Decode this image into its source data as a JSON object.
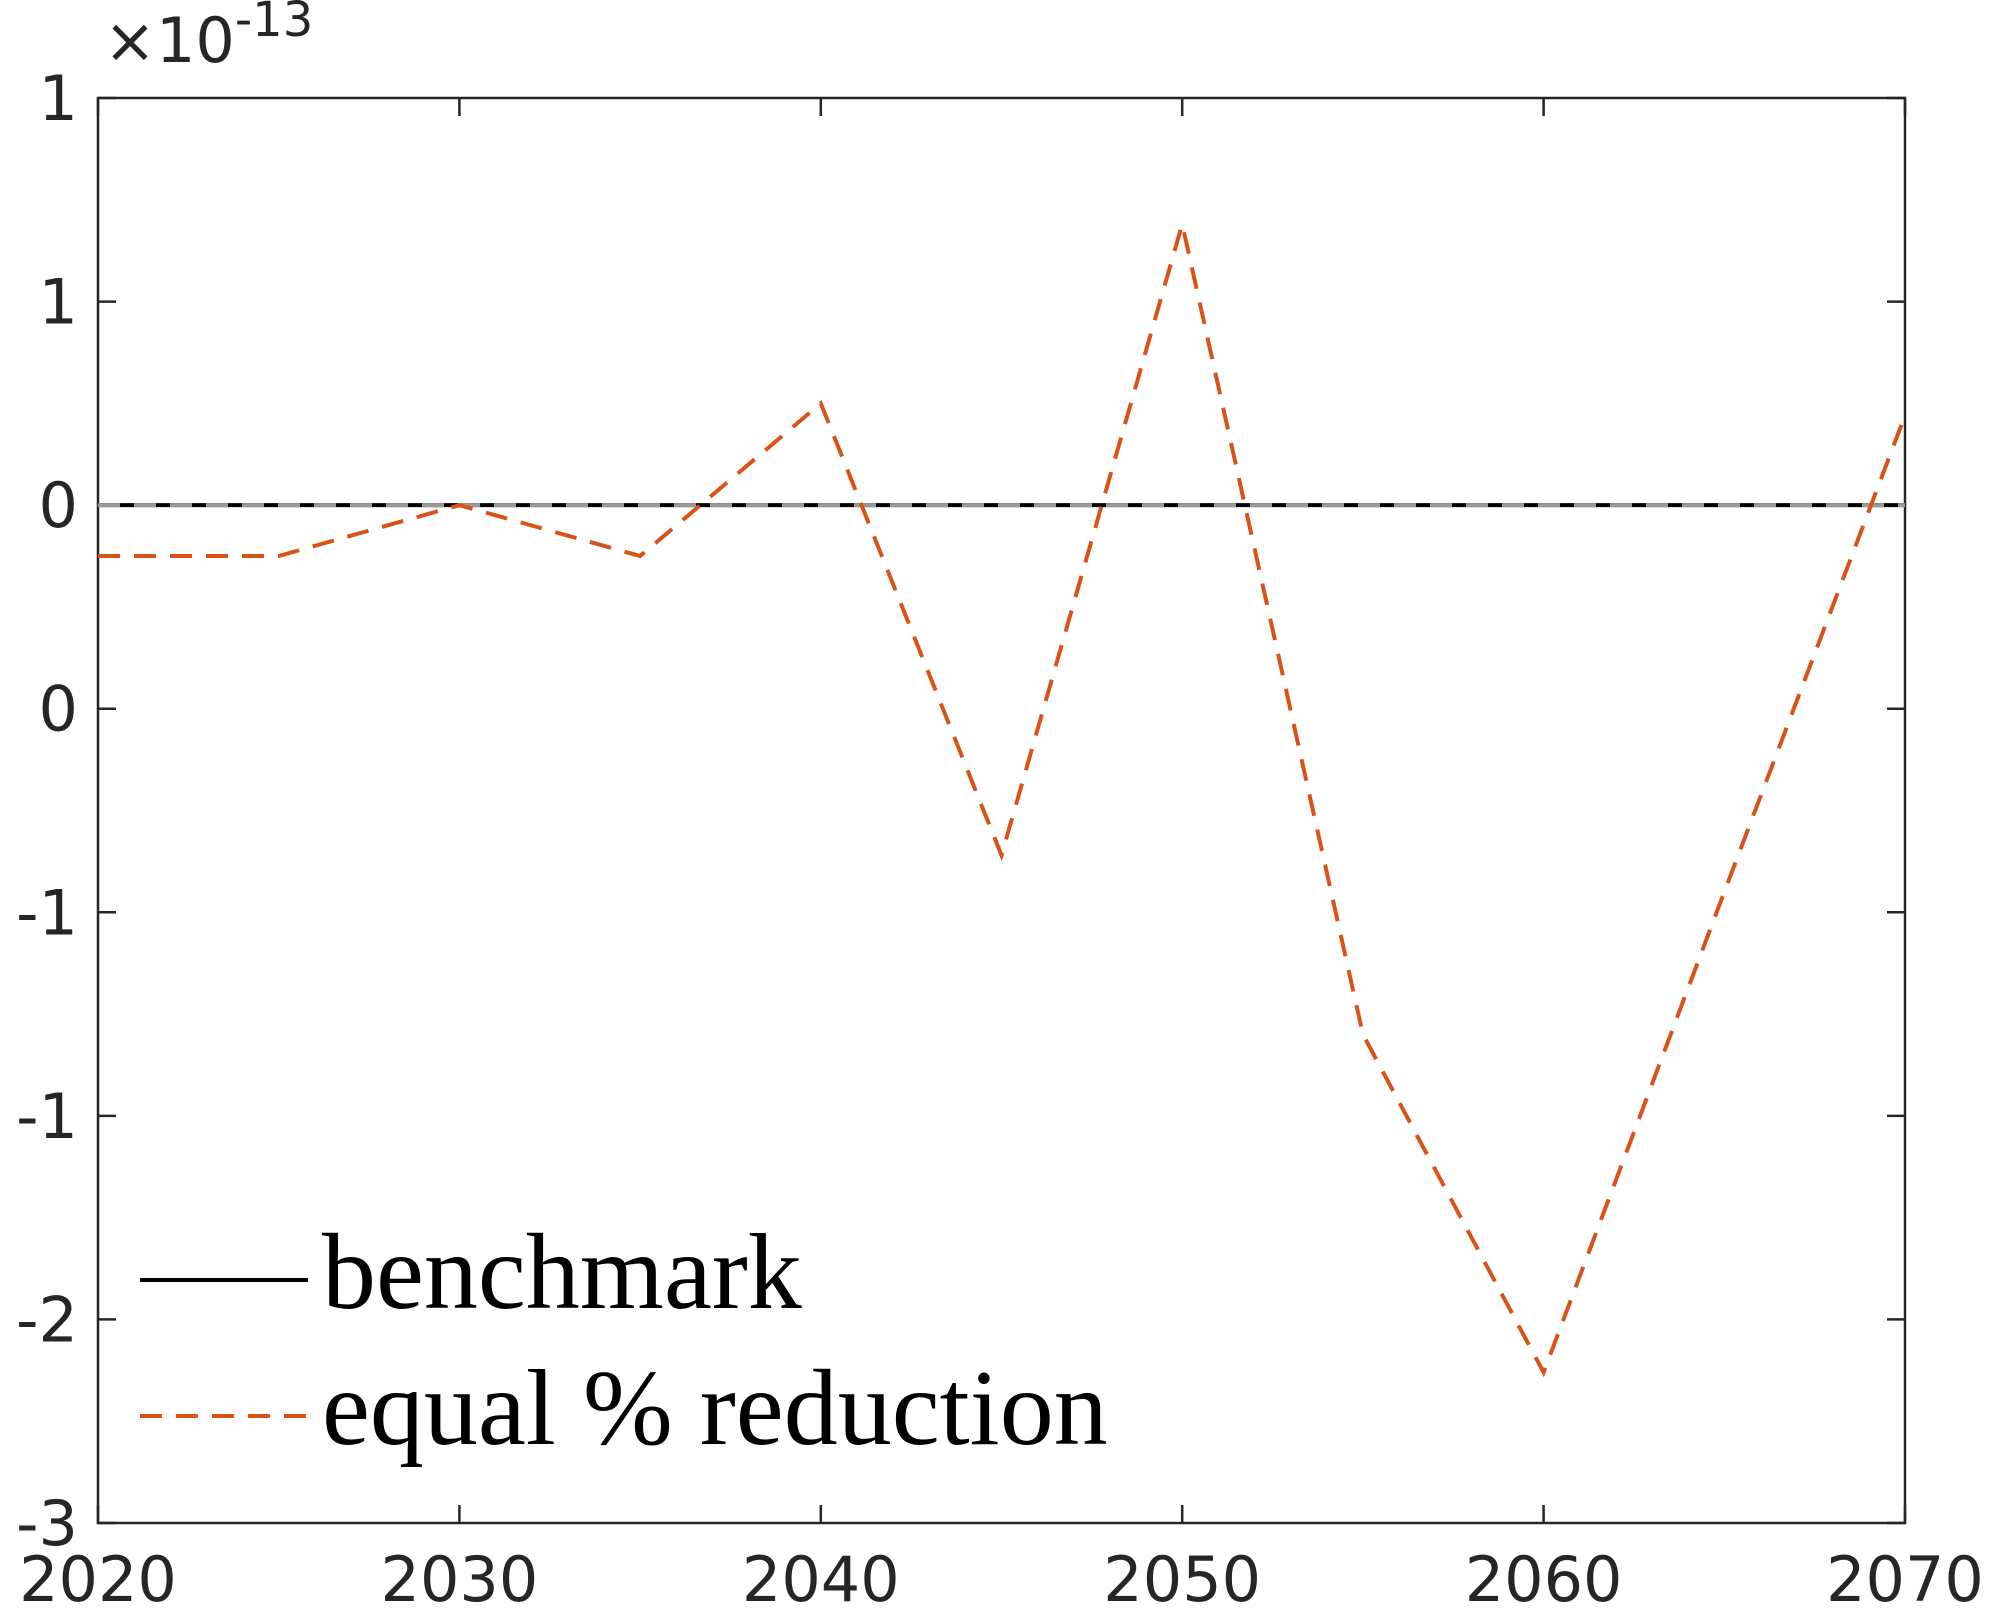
{
  "chart_data": {
    "type": "line",
    "y_multiplier": {
      "base": "×10",
      "exponent": "-13"
    },
    "x": [
      2020,
      2025,
      2030,
      2035,
      2040,
      2045,
      2050,
      2055,
      2060,
      2065,
      2070
    ],
    "series": [
      {
        "name": "benchmark",
        "color": "#000000",
        "dash": false,
        "values": [
          0,
          0,
          0,
          0,
          0,
          0,
          0,
          0,
          0,
          0,
          0
        ]
      },
      {
        "name": "equal % reduction",
        "color": "#d95319",
        "dash": true,
        "values": [
          -0.125,
          -0.125,
          0,
          -0.125,
          0.25,
          -0.86,
          0.69,
          -1.3,
          -2.13,
          -0.95,
          0.22
        ]
      }
    ],
    "xlim": [
      2020,
      2070
    ],
    "xticks": [
      2020,
      2030,
      2040,
      2050,
      2060,
      2070
    ],
    "ylim": [
      -2.5,
      1
    ],
    "yticks": [
      {
        "value": 1,
        "label": "1"
      },
      {
        "value": 0.5,
        "label": "1"
      },
      {
        "value": 0,
        "label": "0"
      },
      {
        "value": -0.5,
        "label": "0"
      },
      {
        "value": -1,
        "label": "-1"
      },
      {
        "value": -1.5,
        "label": "-1"
      },
      {
        "value": -2,
        "label": "-2"
      },
      {
        "value": -2.5,
        "label": "-3"
      }
    ],
    "legend": "lower left",
    "grid": false
  }
}
